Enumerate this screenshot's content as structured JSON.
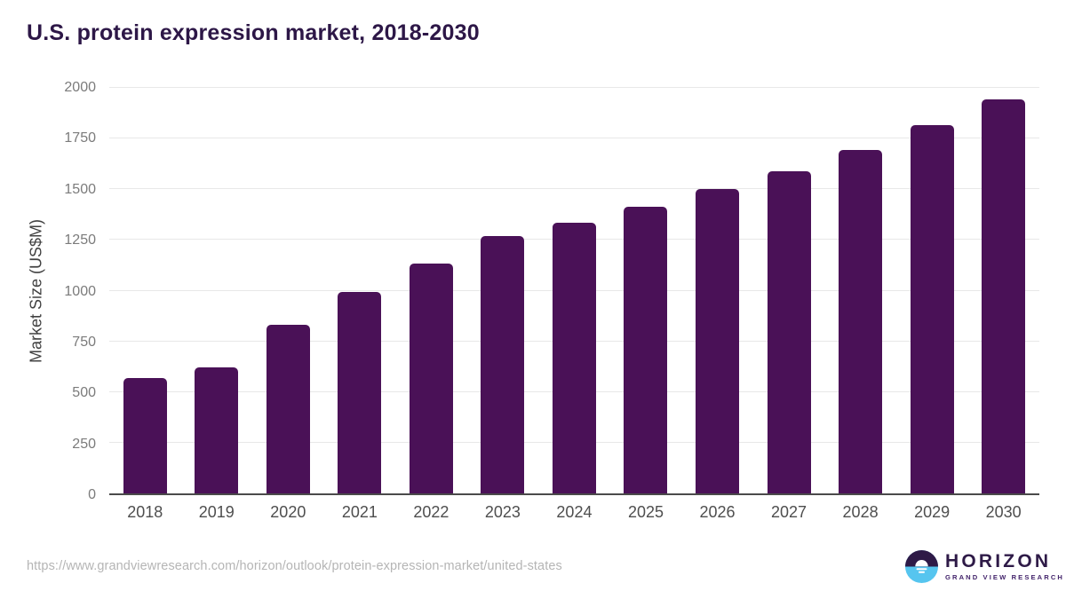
{
  "page": {
    "title": "U.S. protein expression market, 2018-2030"
  },
  "chart_data": {
    "type": "bar",
    "title": "U.S. protein expression market, 2018-2030",
    "xlabel": "",
    "ylabel": "Market Size (US$M)",
    "categories": [
      "2018",
      "2019",
      "2020",
      "2021",
      "2022",
      "2023",
      "2024",
      "2025",
      "2026",
      "2027",
      "2028",
      "2029",
      "2030"
    ],
    "values": [
      570,
      620,
      830,
      995,
      1135,
      1270,
      1335,
      1415,
      1500,
      1590,
      1695,
      1815,
      1945
    ],
    "ylim": [
      0,
      2000
    ],
    "ytick_step": 250,
    "grid": true,
    "legend_position": "none",
    "bar_color": "#4a1157"
  },
  "colors": {
    "bar": "#4a1157",
    "title_text": "#2d1747",
    "y_tick_text": "#7b7b7b",
    "x_tick_text": "#4e4e4e",
    "gridline": "#e8e8e8",
    "axis_line": "#4a4a4a",
    "url_text": "#b5b5b5",
    "logo_dark_purple": "#2e1a47",
    "logo_light_blue": "#56c5ef"
  },
  "footer": {
    "source_url": "https://www.grandviewresearch.com/horizon/outlook/protein-expression-market/united-states",
    "logo": {
      "name": "HORIZON",
      "subtitle": "GRAND VIEW RESEARCH"
    }
  }
}
